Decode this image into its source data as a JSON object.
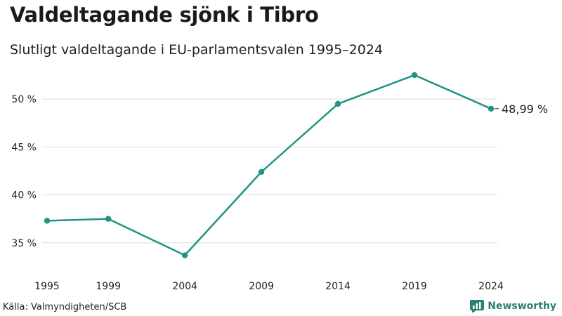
{
  "header": {
    "title": "Valdeltagande sjönk i Tibro",
    "subtitle": "Slutligt valdeltagande i EU-parlamentsvalen 1995–2024"
  },
  "footer": {
    "source": "Källa: Valmyndigheten/SCB",
    "brand": "Newsworthy",
    "brand_icon": "bar-chart-logo-icon"
  },
  "colors": {
    "line": "#1f9484",
    "grid": "#dddddd",
    "brand": "#2c7f77"
  },
  "chart_data": {
    "type": "line",
    "title": "Valdeltagande sjönk i Tibro",
    "subtitle": "Slutligt valdeltagande i EU-parlamentsvalen 1995–2024",
    "xlabel": "",
    "ylabel": "",
    "x": [
      1995,
      1999,
      2004,
      2009,
      2014,
      2019,
      2024
    ],
    "x_tick_labels": [
      "1995",
      "1999",
      "2004",
      "2009",
      "2014",
      "2019",
      "2024"
    ],
    "y_ticks": [
      35,
      40,
      45,
      50
    ],
    "y_tick_labels": [
      "35 %",
      "40 %",
      "45 %",
      "50 %"
    ],
    "ylim": [
      33.3,
      53.3
    ],
    "grid": true,
    "series": [
      {
        "name": "Valdeltagande",
        "values": [
          37.3,
          37.5,
          33.7,
          42.4,
          49.5,
          52.5,
          48.99
        ]
      }
    ],
    "end_label": "48,99 %"
  }
}
